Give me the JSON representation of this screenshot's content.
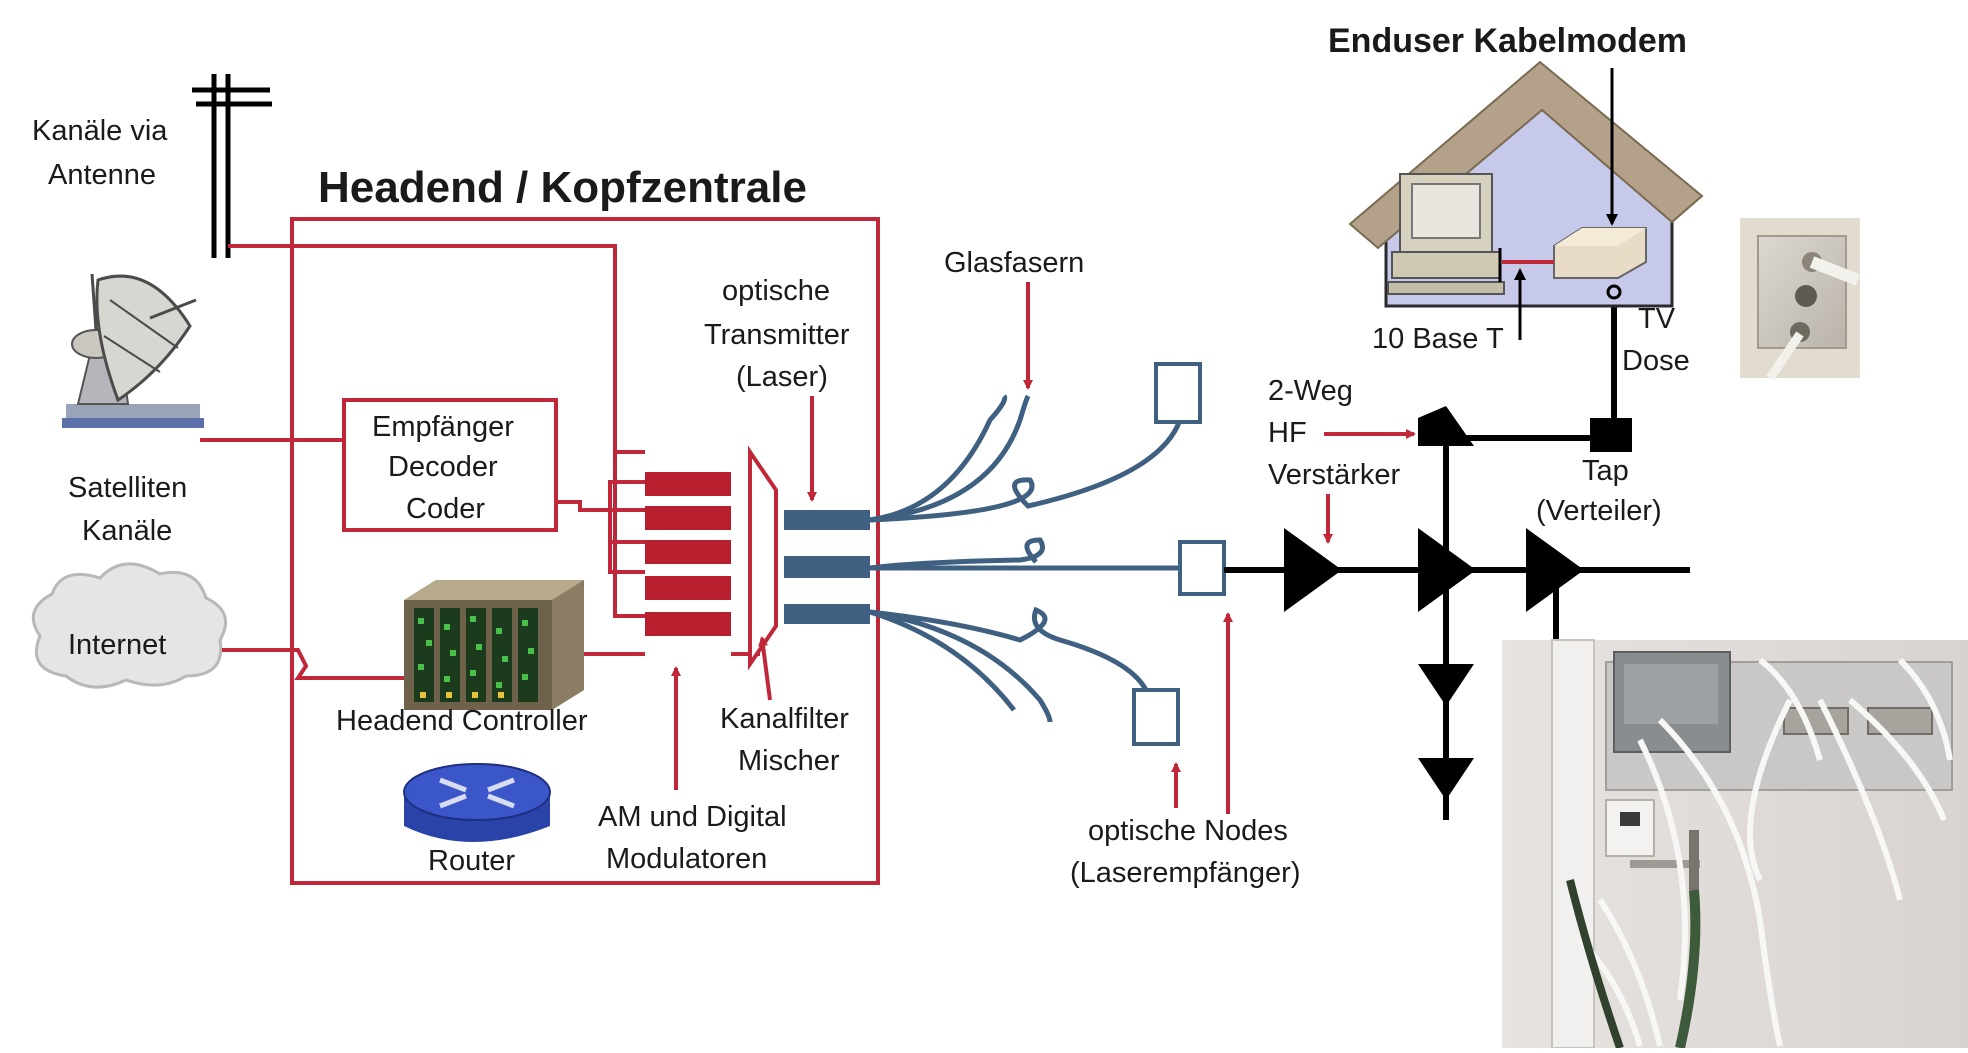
{
  "title": "Headend / Kopfzentrale",
  "enduser_title": "Enduser Kabelmodem",
  "labels": {
    "antenna_1": "Kanäle via",
    "antenna_2": "Antenne",
    "satellite_1": "Satelliten",
    "satellite_2": "Kanäle",
    "internet": "Internet",
    "empf_1": "Empfänger",
    "empf_2": "Decoder",
    "empf_3": "Coder",
    "headend_controller": "Headend Controller",
    "router": "Router",
    "modulators_1": "AM und Digital",
    "modulators_2": "Modulatoren",
    "kanalfilter_1": "Kanalfilter",
    "kanalfilter_2": "Mischer",
    "transmitter_1": "optische",
    "transmitter_2": "Transmitter",
    "transmitter_3": "(Laser)",
    "glasfasern": "Glasfasern",
    "nodes_1": "optische Nodes",
    "nodes_2": "(Laserempfänger)",
    "amp_1": "2-Weg",
    "amp_2": "HF",
    "amp_3": "Verstärker",
    "tap_1": "Tap",
    "tap_2": "(Verteiler)",
    "base_t": "10 Base T",
    "tv_1": "TV",
    "tv_2": "Dose"
  },
  "colors": {
    "red": "#c0283a",
    "blue": "#3f6080",
    "black": "#000000",
    "roof": "#b3a18a",
    "house_wall": "#c7c9ea",
    "router_blue": "#3a56c8"
  },
  "icons": {
    "antenna": "antenna-icon",
    "satellite": "satellite-dish-icon",
    "cloud": "cloud-icon",
    "router": "router-icon",
    "controller": "server-rack-icon",
    "house": "house-icon",
    "computer": "computer-icon",
    "modem": "cable-modem-icon",
    "wall_socket": "tv-socket-photo",
    "distribution_photo": "distribution-box-photo"
  }
}
